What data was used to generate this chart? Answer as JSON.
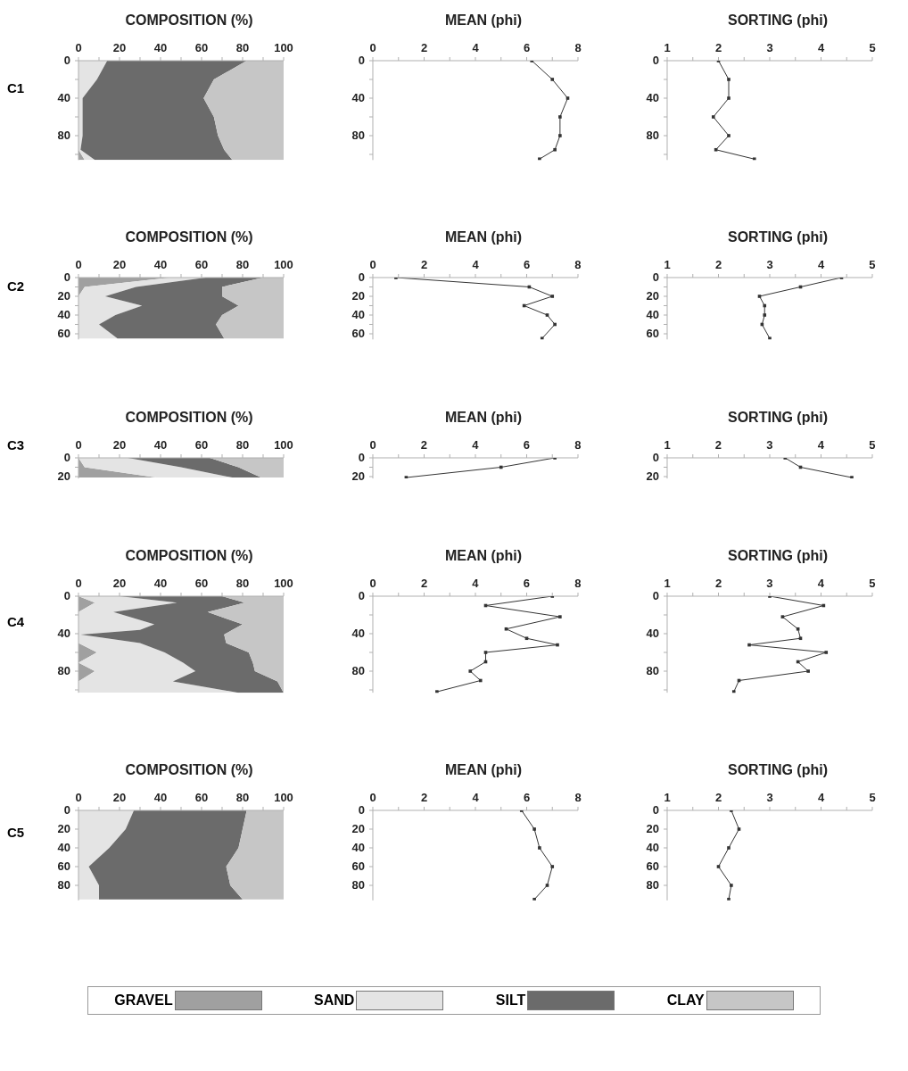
{
  "chart_data": [
    {
      "type": "area",
      "stacked": true,
      "orientation": "horizontal",
      "title": "COMPOSITION (%)",
      "annotations": [
        "C1"
      ],
      "x": [
        0,
        20,
        40,
        60,
        80,
        95,
        106
      ],
      "xlim": [
        0,
        100
      ],
      "xticks": [
        0,
        {
          "value": 10,
          "label": null
        },
        20,
        {
          "value": 30,
          "label": null
        },
        40,
        {
          "value": 50,
          "label": null
        },
        60,
        {
          "value": 70,
          "label": null
        },
        80,
        {
          "value": 90,
          "label": null
        },
        100
      ],
      "ylim": [
        106,
        0
      ],
      "yticks": [
        0,
        {
          "value": 20,
          "label": null
        },
        40,
        {
          "value": 60,
          "label": null
        },
        80,
        {
          "value": 100,
          "label": null
        }
      ],
      "series": [
        {
          "color": "#a0a0a0",
          "values": [
            0,
            0,
            0,
            0,
            0,
            0,
            3
          ]
        },
        {
          "color": "#e4e4e4",
          "values": [
            14,
            9,
            2,
            2,
            2,
            1,
            5
          ]
        },
        {
          "color": "#6b6b6b",
          "values": [
            68,
            57,
            59,
            64,
            66,
            70,
            67
          ]
        },
        {
          "color": "#c6c6c6",
          "values": [
            18,
            34,
            39,
            34,
            32,
            29,
            25
          ]
        }
      ]
    },
    {
      "type": "line",
      "orientation": "horizontal",
      "marker": "square",
      "title": "MEAN (phi)",
      "x": [
        0,
        20,
        40,
        60,
        80,
        95,
        105
      ],
      "xlim": [
        0,
        8
      ],
      "xticks": [
        0,
        {
          "value": 1,
          "label": null
        },
        2,
        {
          "value": 3,
          "label": null
        },
        4,
        {
          "value": 5,
          "label": null
        },
        6,
        {
          "value": 7,
          "label": null
        },
        8
      ],
      "ylim": [
        106,
        0
      ],
      "yticks": [
        0,
        {
          "value": 20,
          "label": null
        },
        40,
        {
          "value": 60,
          "label": null
        },
        80,
        {
          "value": 100,
          "label": null
        }
      ],
      "series": [
        {
          "color": "#333333",
          "values": [
            6.2,
            7.0,
            7.6,
            7.3,
            7.3,
            7.1,
            6.5
          ]
        }
      ]
    },
    {
      "type": "line",
      "orientation": "horizontal",
      "marker": "square",
      "title": "SORTING (phi)",
      "x": [
        0,
        20,
        40,
        60,
        80,
        95,
        105
      ],
      "xlim": [
        1,
        5
      ],
      "xticks": [
        1,
        {
          "value": 1.5,
          "label": null
        },
        2,
        {
          "value": 2.5,
          "label": null
        },
        3,
        {
          "value": 3.5,
          "label": null
        },
        4,
        {
          "value": 4.5,
          "label": null
        },
        5
      ],
      "ylim": [
        106,
        0
      ],
      "yticks": [
        0,
        {
          "value": 20,
          "label": null
        },
        40,
        {
          "value": 60,
          "label": null
        },
        80,
        {
          "value": 100,
          "label": null
        }
      ],
      "series": [
        {
          "color": "#333333",
          "values": [
            2.0,
            2.2,
            2.2,
            1.9,
            2.2,
            1.95,
            2.7
          ]
        }
      ]
    },
    {
      "type": "area",
      "stacked": true,
      "orientation": "horizontal",
      "title": "COMPOSITION (%)",
      "annotations": [
        "C2"
      ],
      "x": [
        0,
        10,
        20,
        30,
        40,
        50,
        65
      ],
      "xlim": [
        0,
        100
      ],
      "xticks": [
        0,
        {
          "value": 10,
          "label": null
        },
        20,
        {
          "value": 30,
          "label": null
        },
        40,
        {
          "value": 50,
          "label": null
        },
        60,
        {
          "value": 70,
          "label": null
        },
        80,
        {
          "value": 90,
          "label": null
        },
        100
      ],
      "ylim": [
        66,
        0
      ],
      "yticks": [
        0,
        {
          "value": 10,
          "label": null
        },
        20,
        {
          "value": 30,
          "label": null
        },
        40,
        {
          "value": 50,
          "label": null
        },
        60
      ],
      "series": [
        {
          "color": "#a0a0a0",
          "values": [
            45,
            3,
            0,
            0,
            0,
            0,
            0
          ]
        },
        {
          "color": "#e4e4e4",
          "values": [
            17,
            25,
            13,
            31,
            18,
            10,
            19
          ]
        },
        {
          "color": "#6b6b6b",
          "values": [
            28,
            42,
            57,
            47,
            52,
            57,
            52
          ]
        },
        {
          "color": "#c6c6c6",
          "values": [
            10,
            30,
            30,
            22,
            30,
            33,
            29
          ]
        }
      ]
    },
    {
      "type": "line",
      "orientation": "horizontal",
      "marker": "square",
      "title": "MEAN (phi)",
      "x": [
        0,
        10,
        20,
        30,
        40,
        50,
        65
      ],
      "xlim": [
        0,
        8
      ],
      "xticks": [
        0,
        {
          "value": 1,
          "label": null
        },
        2,
        {
          "value": 3,
          "label": null
        },
        4,
        {
          "value": 5,
          "label": null
        },
        6,
        {
          "value": 7,
          "label": null
        },
        8
      ],
      "ylim": [
        66,
        0
      ],
      "yticks": [
        0,
        {
          "value": 10,
          "label": null
        },
        20,
        {
          "value": 30,
          "label": null
        },
        40,
        {
          "value": 50,
          "label": null
        },
        60
      ],
      "series": [
        {
          "color": "#333333",
          "values": [
            0.9,
            6.1,
            7.0,
            5.9,
            6.8,
            7.1,
            6.6
          ]
        }
      ]
    },
    {
      "type": "line",
      "orientation": "horizontal",
      "marker": "square",
      "title": "SORTING (phi)",
      "x": [
        0,
        10,
        20,
        30,
        40,
        50,
        65
      ],
      "xlim": [
        1,
        5
      ],
      "xticks": [
        1,
        {
          "value": 1.5,
          "label": null
        },
        2,
        {
          "value": 2.5,
          "label": null
        },
        3,
        {
          "value": 3.5,
          "label": null
        },
        4,
        {
          "value": 4.5,
          "label": null
        },
        5
      ],
      "ylim": [
        66,
        0
      ],
      "yticks": [
        0,
        {
          "value": 10,
          "label": null
        },
        20,
        {
          "value": 30,
          "label": null
        },
        40,
        {
          "value": 50,
          "label": null
        },
        60
      ],
      "series": [
        {
          "color": "#333333",
          "values": [
            4.4,
            3.6,
            2.8,
            2.9,
            2.9,
            2.85,
            3.0
          ]
        }
      ]
    },
    {
      "type": "area",
      "stacked": true,
      "orientation": "horizontal",
      "title": "COMPOSITION (%)",
      "annotations": [
        "C3"
      ],
      "x": [
        0,
        10,
        21
      ],
      "xlim": [
        0,
        100
      ],
      "xticks": [
        0,
        {
          "value": 10,
          "label": null
        },
        20,
        {
          "value": 30,
          "label": null
        },
        40,
        {
          "value": 50,
          "label": null
        },
        60,
        {
          "value": 70,
          "label": null
        },
        80,
        {
          "value": 90,
          "label": null
        },
        100
      ],
      "ylim": [
        22,
        0
      ],
      "yticks": [
        0,
        {
          "value": 10,
          "label": null
        },
        20
      ],
      "series": [
        {
          "color": "#a0a0a0",
          "values": [
            0,
            3,
            38
          ]
        },
        {
          "color": "#e4e4e4",
          "values": [
            24,
            47,
            37
          ]
        },
        {
          "color": "#6b6b6b",
          "values": [
            40,
            28,
            14
          ]
        },
        {
          "color": "#c6c6c6",
          "values": [
            36,
            22,
            11
          ]
        }
      ]
    },
    {
      "type": "line",
      "orientation": "horizontal",
      "marker": "square",
      "title": "MEAN (phi)",
      "x": [
        0,
        10,
        21
      ],
      "xlim": [
        0,
        8
      ],
      "xticks": [
        0,
        {
          "value": 1,
          "label": null
        },
        2,
        {
          "value": 3,
          "label": null
        },
        4,
        {
          "value": 5,
          "label": null
        },
        6,
        {
          "value": 7,
          "label": null
        },
        8
      ],
      "ylim": [
        22,
        0
      ],
      "yticks": [
        0,
        {
          "value": 10,
          "label": null
        },
        20
      ],
      "series": [
        {
          "color": "#333333",
          "values": [
            7.1,
            5.0,
            1.3
          ]
        }
      ]
    },
    {
      "type": "line",
      "orientation": "horizontal",
      "marker": "square",
      "title": "SORTING (phi)",
      "x": [
        0,
        10,
        21
      ],
      "xlim": [
        1,
        5
      ],
      "xticks": [
        1,
        {
          "value": 1.5,
          "label": null
        },
        2,
        {
          "value": 2.5,
          "label": null
        },
        3,
        {
          "value": 3.5,
          "label": null
        },
        4,
        {
          "value": 4.5,
          "label": null
        },
        5
      ],
      "ylim": [
        22,
        0
      ],
      "yticks": [
        0,
        {
          "value": 10,
          "label": null
        },
        20
      ],
      "series": [
        {
          "color": "#333333",
          "values": [
            3.3,
            3.6,
            4.6
          ]
        }
      ]
    },
    {
      "type": "area",
      "stacked": true,
      "orientation": "horizontal",
      "title": "COMPOSITION (%)",
      "annotations": [
        "C4"
      ],
      "legend": "bottom",
      "x": [
        0,
        7,
        17,
        30,
        36,
        41,
        50,
        60,
        71,
        80,
        91,
        103
      ],
      "xlim": [
        0,
        100
      ],
      "xticks": [
        0,
        {
          "value": 10,
          "label": null
        },
        20,
        {
          "value": 30,
          "label": null
        },
        40,
        {
          "value": 50,
          "label": null
        },
        60,
        {
          "value": 70,
          "label": null
        },
        80,
        {
          "value": 90,
          "label": null
        },
        100
      ],
      "ylim": [
        103,
        0
      ],
      "yticks": [
        0,
        {
          "value": 20,
          "label": null
        },
        40,
        {
          "value": 60,
          "label": null
        },
        80,
        {
          "value": 100,
          "label": null
        }
      ],
      "series": [
        {
          "name": "GRAVEL",
          "color": "#a0a0a0",
          "values": [
            0,
            8,
            0,
            0,
            0,
            0,
            0,
            9,
            0,
            8,
            0,
            0
          ]
        },
        {
          "name": "SAND",
          "color": "#e4e4e4",
          "values": [
            20,
            40,
            17,
            37,
            30,
            1,
            30,
            33,
            51,
            49,
            46,
            78
          ]
        },
        {
          "name": "SILT",
          "color": "#6b6b6b",
          "values": [
            50,
            33,
            46,
            43,
            45,
            70,
            42,
            41,
            34,
            29,
            51,
            22
          ]
        },
        {
          "name": "CLAY",
          "color": "#c6c6c6",
          "values": [
            30,
            19,
            37,
            20,
            25,
            29,
            28,
            17,
            15,
            14,
            3,
            0
          ]
        }
      ]
    },
    {
      "type": "line",
      "orientation": "horizontal",
      "marker": "square",
      "title": "MEAN (phi)",
      "x": [
        0,
        10,
        22,
        35,
        45,
        52,
        60,
        70,
        80,
        90,
        102
      ],
      "xlim": [
        0,
        8
      ],
      "xticks": [
        0,
        {
          "value": 1,
          "label": null
        },
        2,
        {
          "value": 3,
          "label": null
        },
        4,
        {
          "value": 5,
          "label": null
        },
        6,
        {
          "value": 7,
          "label": null
        },
        8
      ],
      "ylim": [
        103,
        0
      ],
      "yticks": [
        0,
        {
          "value": 20,
          "label": null
        },
        40,
        {
          "value": 60,
          "label": null
        },
        80,
        {
          "value": 100,
          "label": null
        }
      ],
      "series": [
        {
          "color": "#333333",
          "values": [
            7.0,
            4.4,
            7.3,
            5.2,
            6.0,
            7.2,
            4.4,
            4.4,
            3.8,
            4.2,
            2.5
          ]
        }
      ]
    },
    {
      "type": "line",
      "orientation": "horizontal",
      "marker": "square",
      "title": "SORTING (phi)",
      "x": [
        0,
        10,
        22,
        35,
        45,
        52,
        60,
        70,
        80,
        90,
        102
      ],
      "xlim": [
        1,
        5
      ],
      "xticks": [
        1,
        {
          "value": 1.5,
          "label": null
        },
        2,
        {
          "value": 2.5,
          "label": null
        },
        3,
        {
          "value": 3.5,
          "label": null
        },
        4,
        {
          "value": 4.5,
          "label": null
        },
        5
      ],
      "ylim": [
        103,
        0
      ],
      "yticks": [
        0,
        {
          "value": 20,
          "label": null
        },
        40,
        {
          "value": 60,
          "label": null
        },
        80,
        {
          "value": 100,
          "label": null
        }
      ],
      "series": [
        {
          "color": "#333333",
          "values": [
            3.0,
            4.05,
            3.25,
            3.55,
            3.6,
            2.6,
            4.1,
            3.55,
            3.75,
            2.4,
            2.3
          ]
        }
      ]
    },
    {
      "type": "area",
      "stacked": true,
      "orientation": "horizontal",
      "title": "COMPOSITION (%)",
      "annotations": [
        "C5"
      ],
      "x": [
        0,
        20,
        40,
        60,
        80,
        95
      ],
      "xlim": [
        0,
        100
      ],
      "xticks": [
        0,
        {
          "value": 10,
          "label": null
        },
        20,
        {
          "value": 30,
          "label": null
        },
        40,
        {
          "value": 50,
          "label": null
        },
        60,
        {
          "value": 70,
          "label": null
        },
        80,
        {
          "value": 90,
          "label": null
        },
        100
      ],
      "ylim": [
        96,
        0
      ],
      "yticks": [
        0,
        20,
        40,
        60,
        80
      ],
      "series": [
        {
          "color": "#e4e4e4",
          "values": [
            27,
            23,
            15,
            5,
            10,
            10
          ]
        },
        {
          "color": "#6b6b6b",
          "values": [
            55,
            57,
            63,
            67,
            64,
            70
          ]
        },
        {
          "color": "#c6c6c6",
          "values": [
            18,
            20,
            22,
            28,
            26,
            20
          ]
        }
      ]
    },
    {
      "type": "line",
      "orientation": "horizontal",
      "marker": "square",
      "title": "MEAN (phi)",
      "x": [
        0,
        20,
        40,
        60,
        80,
        95
      ],
      "xlim": [
        0,
        8
      ],
      "xticks": [
        0,
        {
          "value": 1,
          "label": null
        },
        2,
        {
          "value": 3,
          "label": null
        },
        4,
        {
          "value": 5,
          "label": null
        },
        6,
        {
          "value": 7,
          "label": null
        },
        8
      ],
      "ylim": [
        96,
        0
      ],
      "yticks": [
        0,
        20,
        40,
        60,
        80
      ],
      "series": [
        {
          "color": "#333333",
          "values": [
            5.8,
            6.3,
            6.5,
            7.0,
            6.8,
            6.3
          ]
        }
      ]
    },
    {
      "type": "line",
      "orientation": "horizontal",
      "marker": "square",
      "title": "SORTING (phi)",
      "x": [
        0,
        20,
        40,
        60,
        80,
        95
      ],
      "xlim": [
        1,
        5
      ],
      "xticks": [
        1,
        {
          "value": 1.5,
          "label": null
        },
        2,
        {
          "value": 2.5,
          "label": null
        },
        3,
        {
          "value": 3.5,
          "label": null
        },
        4,
        {
          "value": 4.5,
          "label": null
        },
        5
      ],
      "ylim": [
        96,
        0
      ],
      "yticks": [
        0,
        20,
        40,
        60,
        80
      ],
      "series": [
        {
          "color": "#333333",
          "values": [
            2.25,
            2.4,
            2.2,
            2.0,
            2.25,
            2.2
          ]
        }
      ]
    }
  ]
}
